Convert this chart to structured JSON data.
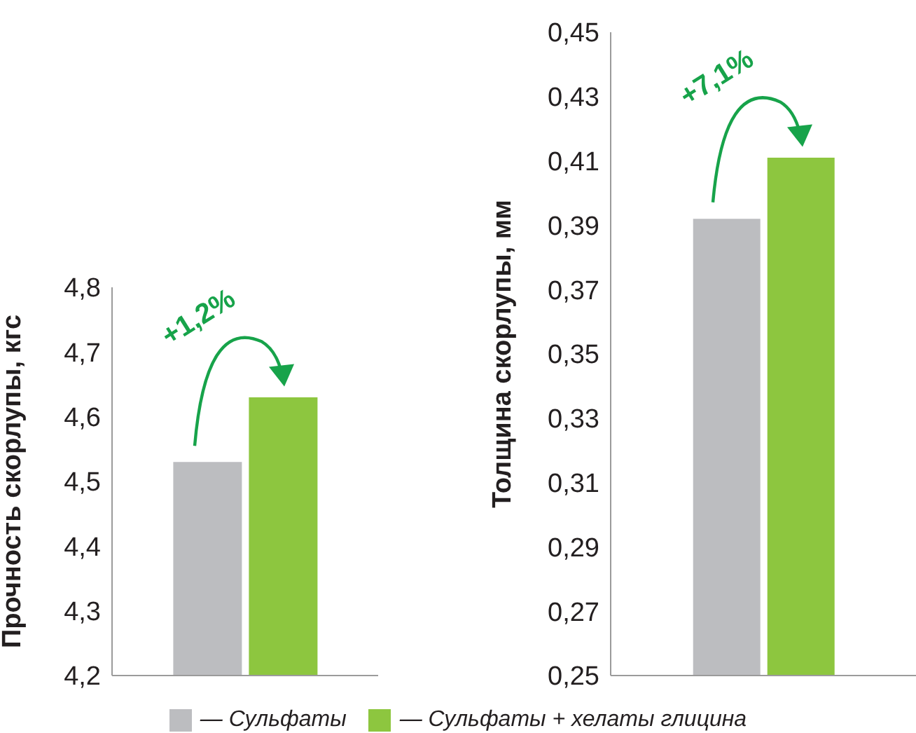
{
  "chart_data": [
    {
      "type": "bar",
      "ylabel": "Прочность скорлупы, кгс",
      "categories": [
        null
      ],
      "series": [
        {
          "name": "— Сульфаты",
          "color": "#bcbdc0",
          "values": [
            4.53
          ]
        },
        {
          "name": "— Сульфаты + хелаты глицина",
          "color": "#8dc63f",
          "values": [
            4.63
          ]
        }
      ],
      "ylim": [
        4.2,
        4.8
      ],
      "yticks": [
        {
          "value": 4.2,
          "label": "4,2"
        },
        {
          "value": 4.3,
          "label": "4,3"
        },
        {
          "value": 4.4,
          "label": "4,4"
        },
        {
          "value": 4.5,
          "label": "4,5"
        },
        {
          "value": 4.6,
          "label": "4,6"
        },
        {
          "value": 4.7,
          "label": "4,7"
        },
        {
          "value": 4.8,
          "label": "4,8"
        }
      ],
      "annotations": [
        "+1,2%"
      ],
      "grid": false,
      "legend": "bottom"
    },
    {
      "type": "bar",
      "ylabel": "Толщина скорлупы, мм",
      "categories": [
        null
      ],
      "series": [
        {
          "color": "#bcbdc0",
          "values": [
            0.392
          ]
        },
        {
          "color": "#8dc63f",
          "values": [
            0.411
          ]
        }
      ],
      "ylim": [
        0.25,
        0.45
      ],
      "yticks": [
        {
          "value": 0.25,
          "label": "0,25"
        },
        {
          "value": 0.27,
          "label": "0,27"
        },
        {
          "value": 0.29,
          "label": "0,29"
        },
        {
          "value": 0.31,
          "label": "0,31"
        },
        {
          "value": 0.33,
          "label": "0,33"
        },
        {
          "value": 0.35,
          "label": "0,35"
        },
        {
          "value": 0.37,
          "label": "0,37"
        },
        {
          "value": 0.39,
          "label": "0,39"
        },
        {
          "value": 0.41,
          "label": "0,41"
        },
        {
          "value": 0.43,
          "label": "0,43"
        },
        {
          "value": 0.45,
          "label": "0,45"
        }
      ],
      "annotations": [
        "+7,1%"
      ],
      "grid": false
    }
  ]
}
